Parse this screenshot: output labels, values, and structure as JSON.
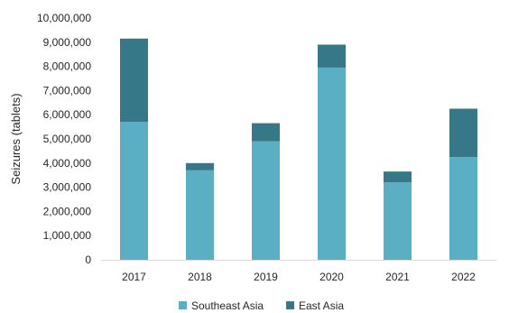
{
  "chart_data": {
    "type": "bar",
    "stacked": true,
    "categories": [
      "2017",
      "2018",
      "2019",
      "2020",
      "2021",
      "2022"
    ],
    "series": [
      {
        "name": "Southeast Asia",
        "color": "#5aafc4",
        "values": [
          5700000,
          3700000,
          4900000,
          7950000,
          3200000,
          4250000
        ]
      },
      {
        "name": "East Asia",
        "color": "#367888",
        "values": [
          3450000,
          300000,
          750000,
          950000,
          450000,
          2000000
        ]
      }
    ],
    "ylabel": "Seizures (tablets)",
    "ylim": [
      0,
      10000000
    ],
    "yticks": [
      {
        "value": 0,
        "label": "0"
      },
      {
        "value": 1000000,
        "label": "1,000,000"
      },
      {
        "value": 2000000,
        "label": "2,000,000"
      },
      {
        "value": 3000000,
        "label": "3,000,000"
      },
      {
        "value": 4000000,
        "label": "4,000,000"
      },
      {
        "value": 5000000,
        "label": "5,000,000"
      },
      {
        "value": 6000000,
        "label": "6,000,000"
      },
      {
        "value": 7000000,
        "label": "7,000,000"
      },
      {
        "value": 8000000,
        "label": "8,000,000"
      },
      {
        "value": 9000000,
        "label": "9,000,000"
      },
      {
        "value": 10000000,
        "label": "10,000,000"
      }
    ],
    "grid": false,
    "legend_position": "bottom"
  }
}
